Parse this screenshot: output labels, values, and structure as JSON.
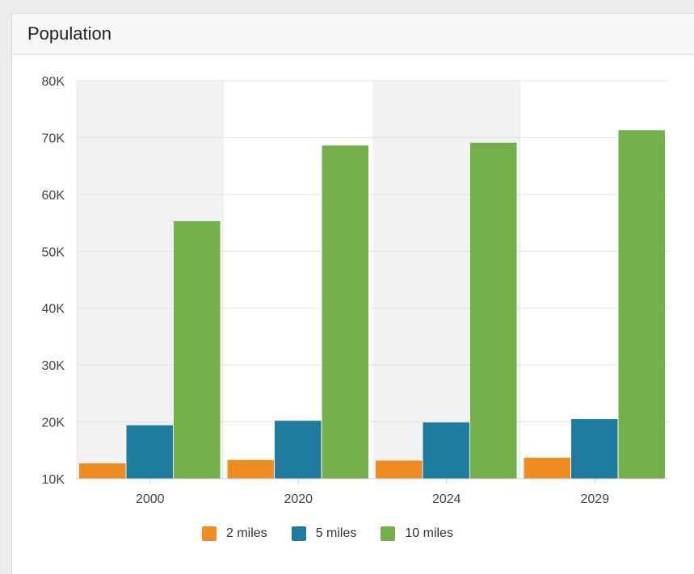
{
  "panel": {
    "title": "Population"
  },
  "chart_data": {
    "type": "bar",
    "title": "",
    "xlabel": "",
    "ylabel": "",
    "categories": [
      "2000",
      "2020",
      "2024",
      "2029"
    ],
    "series": [
      {
        "name": "2 miles",
        "color": "#ee8b23",
        "values": [
          12700,
          13300,
          13200,
          13700
        ]
      },
      {
        "name": "5 miles",
        "color": "#1f7c9f",
        "values": [
          19400,
          20200,
          19900,
          20500
        ]
      },
      {
        "name": "10 miles",
        "color": "#73b04c",
        "values": [
          55300,
          68600,
          69100,
          71300
        ]
      }
    ],
    "ylim": [
      10000,
      80000
    ],
    "yticks": [
      {
        "value": 10000,
        "label": "10K"
      },
      {
        "value": 20000,
        "label": "20K"
      },
      {
        "value": 30000,
        "label": "30K"
      },
      {
        "value": 40000,
        "label": "40K"
      },
      {
        "value": 50000,
        "label": "50K"
      },
      {
        "value": 60000,
        "label": "60K"
      },
      {
        "value": 70000,
        "label": "70K"
      },
      {
        "value": 80000,
        "label": "80K"
      }
    ],
    "grid": true,
    "legend_position": "bottom-center",
    "alternating_band_color": "#f2f2f2",
    "gridline_color": "#e3e3e3"
  }
}
